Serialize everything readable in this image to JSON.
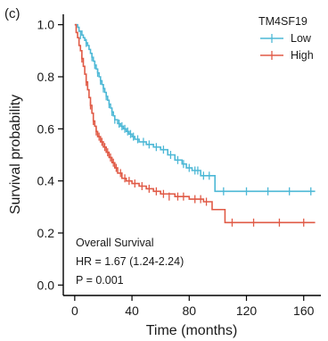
{
  "chart_data": {
    "type": "line",
    "subtype": "kaplan-meier",
    "panel_label": "(c)",
    "title": "",
    "xlabel": "Time (months)",
    "ylabel": "Survival probability",
    "xlim": [
      -8,
      172
    ],
    "ylim": [
      -0.04,
      1.04
    ],
    "xticks": [
      0,
      40,
      80,
      120,
      160
    ],
    "yticks": [
      0.0,
      0.2,
      0.4,
      0.6,
      0.8,
      1.0
    ],
    "ytick_labels": [
      "0.0",
      "0.2",
      "0.4",
      "0.6",
      "0.8",
      "1.0"
    ],
    "grid": false,
    "legend": {
      "title": "TM4SF19",
      "placement": "top-right",
      "entries": [
        "Low",
        "High"
      ]
    },
    "annotations": [
      "Overall Survival",
      "HR = 1.67 (1.24-2.24)",
      "P = 0.001"
    ],
    "series": [
      {
        "name": "Low",
        "color": "#4db8d6",
        "steps": [
          [
            0,
            1.0
          ],
          [
            2,
            0.99
          ],
          [
            3,
            0.975
          ],
          [
            5,
            0.96
          ],
          [
            6,
            0.95
          ],
          [
            7,
            0.94
          ],
          [
            8,
            0.93
          ],
          [
            9,
            0.92
          ],
          [
            10,
            0.905
          ],
          [
            11,
            0.89
          ],
          [
            12,
            0.875
          ],
          [
            13,
            0.86
          ],
          [
            14,
            0.845
          ],
          [
            15,
            0.83
          ],
          [
            16,
            0.815
          ],
          [
            17,
            0.8
          ],
          [
            18,
            0.785
          ],
          [
            19,
            0.77
          ],
          [
            20,
            0.755
          ],
          [
            21,
            0.74
          ],
          [
            22,
            0.725
          ],
          [
            23,
            0.71
          ],
          [
            24,
            0.695
          ],
          [
            25,
            0.68
          ],
          [
            26,
            0.665
          ],
          [
            27,
            0.65
          ],
          [
            28,
            0.635
          ],
          [
            30,
            0.62
          ],
          [
            32,
            0.61
          ],
          [
            34,
            0.6
          ],
          [
            36,
            0.59
          ],
          [
            38,
            0.58
          ],
          [
            40,
            0.57
          ],
          [
            42,
            0.56
          ],
          [
            45,
            0.55
          ],
          [
            50,
            0.54
          ],
          [
            55,
            0.53
          ],
          [
            60,
            0.52
          ],
          [
            65,
            0.5
          ],
          [
            70,
            0.48
          ],
          [
            75,
            0.465
          ],
          [
            78,
            0.45
          ],
          [
            82,
            0.44
          ],
          [
            88,
            0.42
          ],
          [
            98,
            0.36
          ],
          [
            168,
            0.36
          ]
        ],
        "censored": [
          [
            4,
            0.96
          ],
          [
            8,
            0.93
          ],
          [
            12,
            0.875
          ],
          [
            14,
            0.845
          ],
          [
            16,
            0.815
          ],
          [
            18,
            0.785
          ],
          [
            20,
            0.755
          ],
          [
            22,
            0.725
          ],
          [
            24,
            0.695
          ],
          [
            26,
            0.665
          ],
          [
            28,
            0.635
          ],
          [
            31,
            0.62
          ],
          [
            33,
            0.61
          ],
          [
            35,
            0.6
          ],
          [
            37,
            0.59
          ],
          [
            39,
            0.58
          ],
          [
            41,
            0.57
          ],
          [
            44,
            0.56
          ],
          [
            48,
            0.55
          ],
          [
            52,
            0.54
          ],
          [
            57,
            0.53
          ],
          [
            62,
            0.52
          ],
          [
            67,
            0.5
          ],
          [
            72,
            0.48
          ],
          [
            76,
            0.465
          ],
          [
            80,
            0.45
          ],
          [
            84,
            0.44
          ],
          [
            86,
            0.44
          ],
          [
            90,
            0.42
          ],
          [
            94,
            0.42
          ],
          [
            104,
            0.36
          ],
          [
            120,
            0.36
          ],
          [
            135,
            0.36
          ],
          [
            150,
            0.36
          ],
          [
            165,
            0.36
          ]
        ]
      },
      {
        "name": "High",
        "color": "#e05a46",
        "steps": [
          [
            0,
            1.0
          ],
          [
            1,
            0.97
          ],
          [
            2,
            0.95
          ],
          [
            3,
            0.92
          ],
          [
            4,
            0.9
          ],
          [
            5,
            0.87
          ],
          [
            6,
            0.84
          ],
          [
            7,
            0.81
          ],
          [
            8,
            0.78
          ],
          [
            9,
            0.75
          ],
          [
            10,
            0.72
          ],
          [
            11,
            0.69
          ],
          [
            12,
            0.66
          ],
          [
            13,
            0.63
          ],
          [
            14,
            0.61
          ],
          [
            15,
            0.59
          ],
          [
            16,
            0.57
          ],
          [
            18,
            0.55
          ],
          [
            20,
            0.53
          ],
          [
            22,
            0.51
          ],
          [
            24,
            0.49
          ],
          [
            26,
            0.47
          ],
          [
            28,
            0.45
          ],
          [
            30,
            0.43
          ],
          [
            33,
            0.41
          ],
          [
            36,
            0.4
          ],
          [
            40,
            0.39
          ],
          [
            45,
            0.38
          ],
          [
            50,
            0.37
          ],
          [
            55,
            0.36
          ],
          [
            60,
            0.35
          ],
          [
            70,
            0.34
          ],
          [
            80,
            0.33
          ],
          [
            90,
            0.32
          ],
          [
            96,
            0.29
          ],
          [
            105,
            0.24
          ],
          [
            168,
            0.24
          ]
        ],
        "censored": [
          [
            5,
            0.87
          ],
          [
            8,
            0.78
          ],
          [
            11,
            0.69
          ],
          [
            13,
            0.63
          ],
          [
            15,
            0.59
          ],
          [
            17,
            0.57
          ],
          [
            19,
            0.55
          ],
          [
            21,
            0.53
          ],
          [
            23,
            0.51
          ],
          [
            25,
            0.49
          ],
          [
            27,
            0.47
          ],
          [
            29,
            0.45
          ],
          [
            32,
            0.43
          ],
          [
            35,
            0.41
          ],
          [
            38,
            0.4
          ],
          [
            42,
            0.39
          ],
          [
            47,
            0.38
          ],
          [
            52,
            0.37
          ],
          [
            57,
            0.36
          ],
          [
            62,
            0.35
          ],
          [
            66,
            0.34
          ],
          [
            72,
            0.34
          ],
          [
            76,
            0.34
          ],
          [
            84,
            0.33
          ],
          [
            88,
            0.33
          ],
          [
            92,
            0.32
          ],
          [
            110,
            0.24
          ],
          [
            125,
            0.24
          ],
          [
            143,
            0.24
          ],
          [
            160,
            0.24
          ]
        ]
      }
    ]
  }
}
